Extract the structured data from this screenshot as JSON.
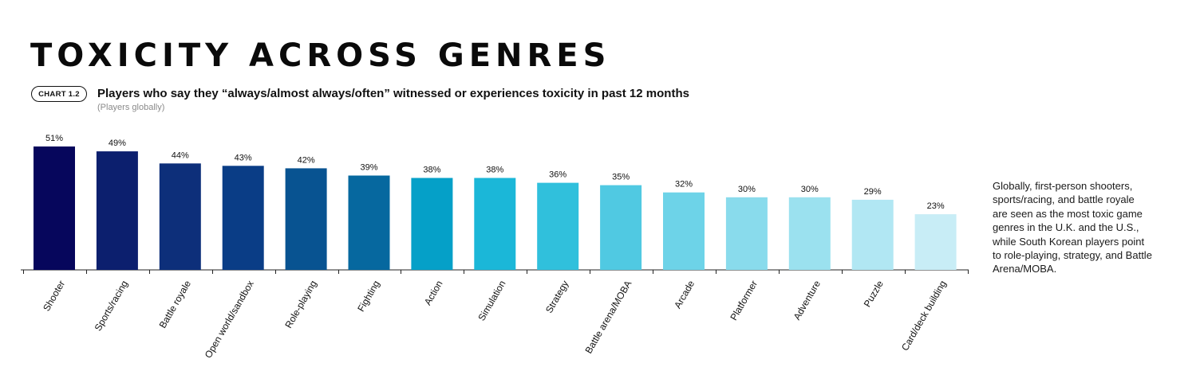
{
  "header": {
    "title": "TOXICITY ACROSS GENRES",
    "chart_badge": "CHART 1.2",
    "subtitle": "Players who say they “always/almost always/often” witnessed or experiences toxicity in past 12 months",
    "note": "(Players globally)"
  },
  "side_note": "Globally, first-person shooters, sports/racing, and battle royale are seen as the most toxic game genres in the U.K. and the U.S., while South Korean players point to role-playing, strategy, and Battle Arena/MOBA.",
  "chart_data": {
    "type": "bar",
    "title": "Players who say they “always/almost always/often” witnessed or experiences toxicity in past 12 months",
    "xlabel": "",
    "ylabel": "",
    "ylim": [
      0,
      55
    ],
    "value_suffix": "%",
    "grid": false,
    "categories": [
      "Shooter",
      "Sports/racing",
      "Battle royale",
      "Open world/sandbox",
      "Role-playing",
      "Fighting",
      "Action",
      "Simulation",
      "Strategy",
      "Battle arena/MOBA",
      "Arcade",
      "Platformer",
      "Adventure",
      "Puzzle",
      "Card/deck building"
    ],
    "values": [
      51,
      49,
      44,
      43,
      42,
      39,
      38,
      38,
      36,
      35,
      32,
      30,
      30,
      29,
      23
    ],
    "colors": [
      "#06065c",
      "#0c1f6e",
      "#0d2f7a",
      "#0a3d86",
      "#085391",
      "#06689f",
      "#05a0c8",
      "#1bb7d8",
      "#30c0dc",
      "#50c9e2",
      "#6dd3e8",
      "#89dbec",
      "#9be1ef",
      "#b1e7f3",
      "#c8edf6"
    ]
  }
}
